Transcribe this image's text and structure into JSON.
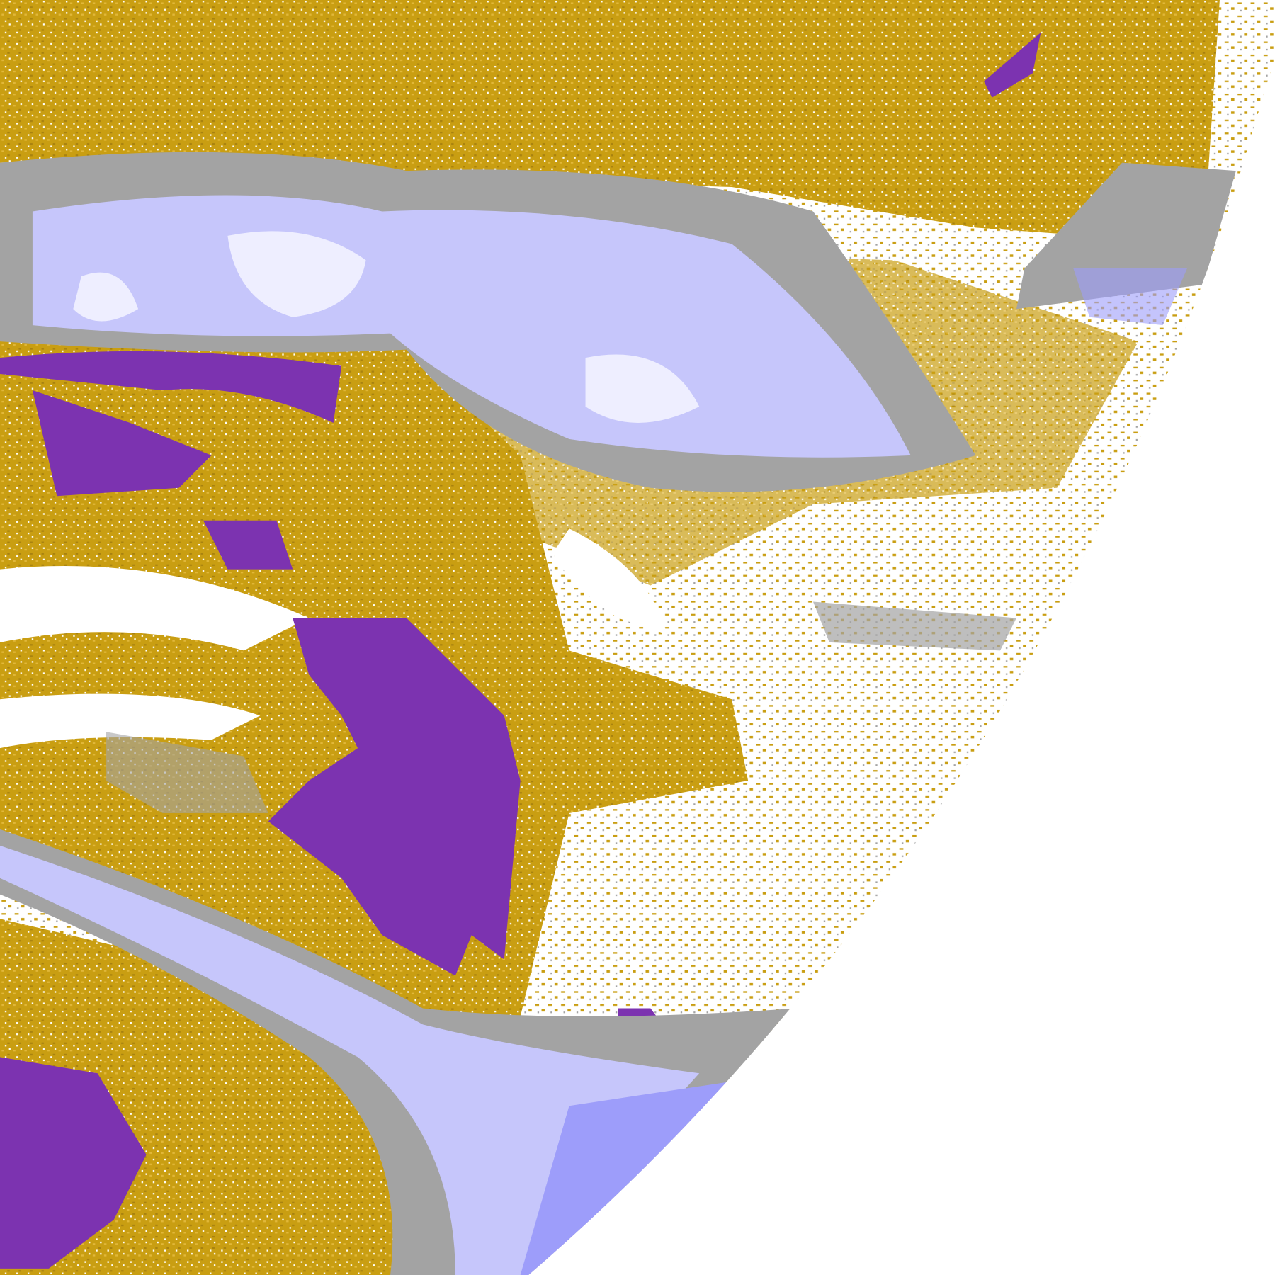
{
  "colors": {
    "background": "#ffffff",
    "class_gold": "#c99e12",
    "class_purple": "#7c33b0",
    "class_lavender": "#c6c6fb",
    "class_periwinkle": "#9d9dfa",
    "class_gray": "#a3a3a3",
    "class_pale": "#eeeeff",
    "class_magenta": "#e060e8"
  }
}
